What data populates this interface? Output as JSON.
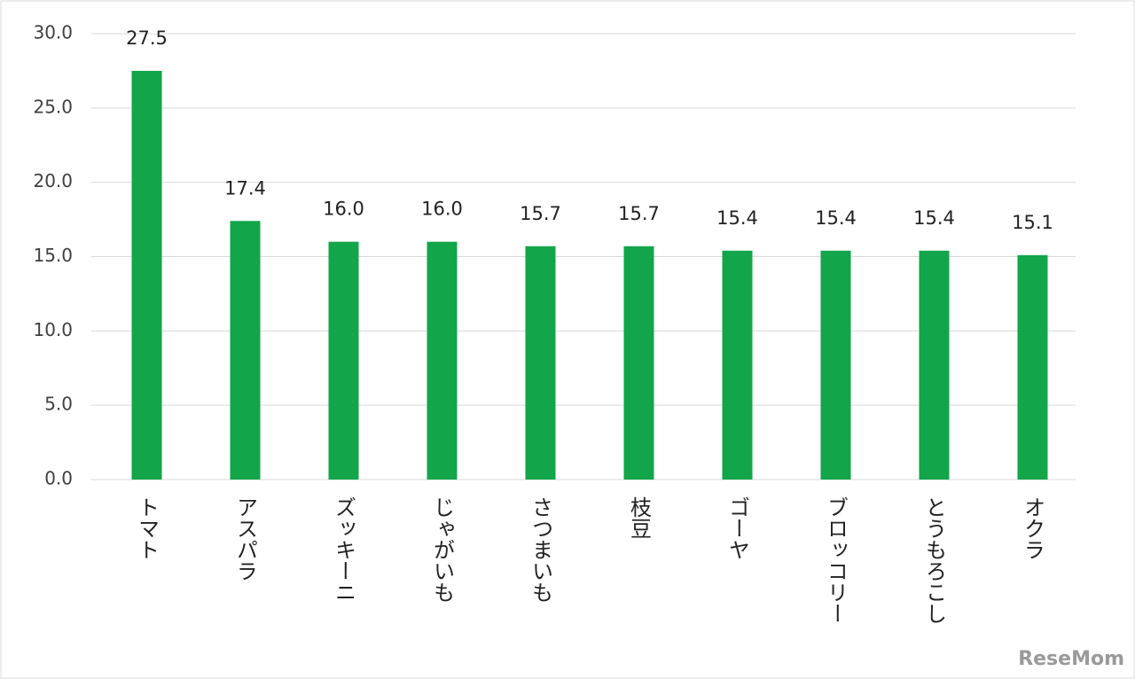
{
  "chart_data": {
    "type": "bar",
    "categories": [
      "トマト",
      "アスパラ",
      "ズッキーニ",
      "じゃがいも",
      "さつまいも",
      "枝豆",
      "ゴーヤ",
      "ブロッコリー",
      "とうもろこし",
      "オクラ"
    ],
    "values": [
      27.5,
      17.4,
      16.0,
      16.0,
      15.7,
      15.7,
      15.4,
      15.4,
      15.4,
      15.1
    ],
    "value_labels": [
      "27.5",
      "17.4",
      "16.0",
      "16.0",
      "15.7",
      "15.7",
      "15.4",
      "15.4",
      "15.4",
      "15.1"
    ],
    "color": "#12a54a",
    "ylim": [
      0,
      30
    ],
    "yticks": [
      {
        "value": 0,
        "label": "0.0"
      },
      {
        "value": 5,
        "label": "5.0"
      },
      {
        "value": 10,
        "label": "10.0"
      },
      {
        "value": 15,
        "label": "15.0"
      },
      {
        "value": 20,
        "label": "20.0"
      },
      {
        "value": 25,
        "label": "25.0"
      },
      {
        "value": 30,
        "label": "30.0"
      }
    ],
    "grid": true
  },
  "watermark": "ReseMom"
}
